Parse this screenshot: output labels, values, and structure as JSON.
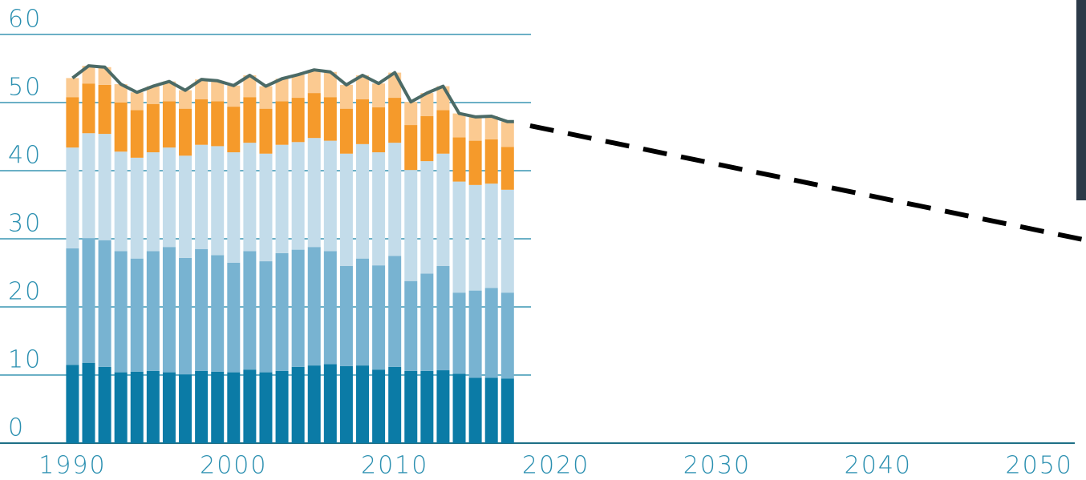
{
  "chart_data": {
    "type": "stacked-bar",
    "x": [
      1990,
      1991,
      1992,
      1993,
      1994,
      1995,
      1996,
      1997,
      1998,
      1999,
      2000,
      2001,
      2002,
      2003,
      2004,
      2005,
      2006,
      2007,
      2008,
      2009,
      2010,
      2011,
      2012,
      2013,
      2014,
      2015,
      2016,
      2017
    ],
    "series": [
      {
        "color": "#0b7ba6",
        "values": [
          11.5,
          11.8,
          11.2,
          10.4,
          10.5,
          10.6,
          10.4,
          10.1,
          10.6,
          10.5,
          10.4,
          10.8,
          10.4,
          10.6,
          11.2,
          11.4,
          11.6,
          11.3,
          11.4,
          10.8,
          11.2,
          10.6,
          10.6,
          10.7,
          10.2,
          9.6,
          9.6,
          9.5
        ]
      },
      {
        "color": "#78b3d1",
        "values": [
          17.1,
          18.3,
          18.6,
          17.8,
          16.6,
          17.6,
          18.4,
          17.1,
          17.9,
          17.1,
          16.1,
          17.4,
          16.3,
          17.3,
          17.2,
          17.4,
          16.6,
          14.7,
          15.7,
          15.3,
          16.3,
          13.2,
          14.3,
          15.3,
          11.9,
          12.8,
          13.2,
          12.6
        ]
      },
      {
        "color": "#c3dcea",
        "values": [
          14.8,
          15.4,
          15.6,
          14.6,
          14.8,
          14.5,
          14.6,
          15.0,
          15.3,
          16.0,
          16.2,
          15.9,
          15.8,
          15.9,
          15.8,
          16.0,
          16.2,
          16.5,
          16.8,
          16.6,
          16.6,
          16.3,
          16.5,
          16.5,
          16.3,
          15.5,
          15.3,
          15.1
        ]
      },
      {
        "color": "#f59a2b",
        "values": [
          7.4,
          7.3,
          7.2,
          7.2,
          7.0,
          7.1,
          6.8,
          6.9,
          6.7,
          6.6,
          6.7,
          6.7,
          6.6,
          6.4,
          6.5,
          6.6,
          6.4,
          6.6,
          6.6,
          6.6,
          6.6,
          6.6,
          6.6,
          6.4,
          6.5,
          6.5,
          6.5,
          6.3
        ]
      },
      {
        "color": "#fbca91",
        "values": [
          2.8,
          2.6,
          2.6,
          2.7,
          2.6,
          2.6,
          2.9,
          2.7,
          2.9,
          3.0,
          3.1,
          3.2,
          3.3,
          3.3,
          3.4,
          3.4,
          3.7,
          3.5,
          3.5,
          3.5,
          3.7,
          3.4,
          3.4,
          3.5,
          3.5,
          3.5,
          3.4,
          3.7
        ]
      }
    ],
    "total_line_color": "#4b6a66",
    "projection": {
      "x": [
        2018.4,
        2052.9
      ],
      "values": [
        46.6,
        29.8
      ],
      "color": "#000000"
    },
    "xlim": [
      1985.5,
      2052.9
    ],
    "xticks": [
      1990,
      2000,
      2010,
      2020,
      2030,
      2040,
      2050
    ],
    "ylim": [
      0,
      60
    ],
    "yticks": [
      0,
      10,
      20,
      30,
      40,
      50,
      60
    ],
    "grid": true
  }
}
